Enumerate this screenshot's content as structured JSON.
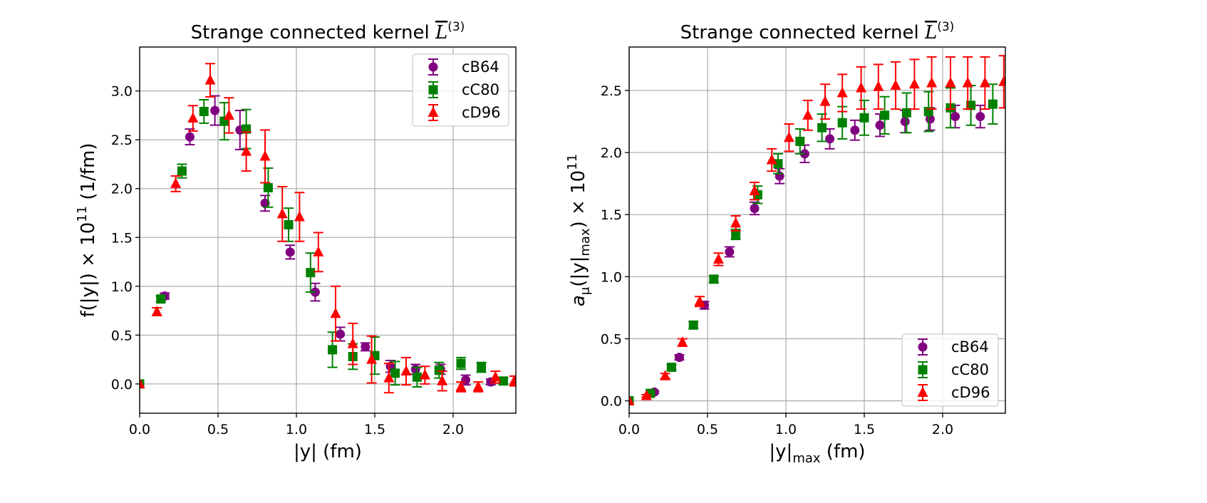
{
  "chart_data": [
    {
      "type": "scatter",
      "title": "Strange connected kernel",
      "title_symbol": "L",
      "title_superscript": "(3)",
      "xlabel": "|y| (fm)",
      "ylabel_main": "f(|y|) × 10",
      "ylabel_exp": "11",
      "ylabel_unit": " (1/fm)",
      "xlim": [
        0.0,
        2.4
      ],
      "ylim": [
        -0.3,
        3.45
      ],
      "xticks": [
        0.0,
        0.5,
        1.0,
        1.5,
        2.0
      ],
      "xtick_labels": [
        "0.0",
        "0.5",
        "1.0",
        "1.5",
        "2.0"
      ],
      "yticks": [
        0.0,
        0.5,
        1.0,
        1.5,
        2.0,
        2.5,
        3.0
      ],
      "ytick_labels": [
        "0.0",
        "0.5",
        "1.0",
        "1.5",
        "2.0",
        "2.5",
        "3.0"
      ],
      "grid": true,
      "legend_position": "upper right",
      "series": [
        {
          "name": "cB64",
          "color": "#800080",
          "marker": "circle",
          "x": [
            0.0,
            0.16,
            0.32,
            0.48,
            0.64,
            0.8,
            0.96,
            1.12,
            1.28,
            1.44,
            1.6,
            1.76,
            1.92,
            2.08,
            2.24
          ],
          "y": [
            0.0,
            0.9,
            2.53,
            2.8,
            2.6,
            1.85,
            1.35,
            0.94,
            0.51,
            0.38,
            0.18,
            0.15,
            0.15,
            0.04,
            0.02
          ],
          "err": [
            0.0,
            0.03,
            0.08,
            0.15,
            0.2,
            0.08,
            0.07,
            0.09,
            0.07,
            0.04,
            0.06,
            0.05,
            0.05,
            0.05,
            0.03
          ]
        },
        {
          "name": "cC80",
          "color": "#008000",
          "marker": "square",
          "x": [
            0.0,
            0.135,
            0.27,
            0.41,
            0.54,
            0.68,
            0.82,
            0.95,
            1.09,
            1.23,
            1.36,
            1.5,
            1.63,
            1.77,
            1.91,
            2.05,
            2.18,
            2.32
          ],
          "y": [
            0.0,
            0.87,
            2.18,
            2.79,
            2.69,
            2.61,
            2.01,
            1.63,
            1.14,
            0.35,
            0.28,
            0.29,
            0.11,
            0.07,
            0.14,
            0.21,
            0.17,
            0.03
          ],
          "err": [
            0.0,
            0.03,
            0.07,
            0.12,
            0.19,
            0.2,
            0.2,
            0.17,
            0.2,
            0.18,
            0.13,
            0.19,
            0.12,
            0.1,
            0.08,
            0.06,
            0.05,
            0.03
          ]
        },
        {
          "name": "cD96",
          "color": "#ff0000",
          "marker": "triangle",
          "x": [
            0.0,
            0.11,
            0.23,
            0.34,
            0.45,
            0.57,
            0.68,
            0.8,
            0.91,
            1.02,
            1.14,
            1.25,
            1.36,
            1.48,
            1.59,
            1.7,
            1.82,
            1.93,
            2.05,
            2.16,
            2.27,
            2.39
          ],
          "y": [
            0.0,
            0.74,
            2.05,
            2.72,
            3.11,
            2.75,
            2.38,
            2.33,
            1.74,
            1.71,
            1.35,
            0.72,
            0.41,
            0.25,
            0.06,
            0.13,
            0.09,
            0.03,
            -0.03,
            -0.03,
            0.07,
            0.03
          ],
          "err": [
            0.0,
            0.04,
            0.08,
            0.13,
            0.17,
            0.18,
            0.2,
            0.27,
            0.28,
            0.25,
            0.2,
            0.28,
            0.21,
            0.24,
            0.15,
            0.14,
            0.09,
            0.1,
            0.05,
            0.05,
            0.06,
            0.05
          ]
        }
      ]
    },
    {
      "type": "scatter",
      "title": "Strange connected kernel",
      "title_symbol": "L",
      "title_superscript": "(3)",
      "xlabel_main": "|y|",
      "xlabel_sub": "max",
      "xlabel_unit": " (fm)",
      "ylabel_main": "a",
      "ylabel_mu": "μ",
      "ylabel_mid": "(|y|",
      "ylabel_sub": "max",
      "ylabel_tail": ") × 10",
      "ylabel_exp": "11",
      "xlim": [
        0.0,
        2.4
      ],
      "ylim": [
        -0.1,
        2.85
      ],
      "xticks": [
        0.0,
        0.5,
        1.0,
        1.5,
        2.0
      ],
      "xtick_labels": [
        "0.0",
        "0.5",
        "1.0",
        "1.5",
        "2.0"
      ],
      "yticks": [
        0.0,
        0.5,
        1.0,
        1.5,
        2.0,
        2.5
      ],
      "ytick_labels": [
        "0.0",
        "0.5",
        "1.0",
        "1.5",
        "2.0",
        "2.5"
      ],
      "grid": true,
      "legend_position": "lower right",
      "series": [
        {
          "name": "cB64",
          "color": "#800080",
          "marker": "circle",
          "x": [
            0.0,
            0.16,
            0.32,
            0.48,
            0.64,
            0.8,
            0.96,
            1.12,
            1.28,
            1.44,
            1.6,
            1.76,
            1.92,
            2.08,
            2.24
          ],
          "y": [
            0.0,
            0.07,
            0.35,
            0.77,
            1.2,
            1.55,
            1.81,
            1.99,
            2.11,
            2.18,
            2.22,
            2.25,
            2.27,
            2.29,
            2.29
          ],
          "err": [
            0.0,
            0.01,
            0.02,
            0.03,
            0.04,
            0.05,
            0.06,
            0.07,
            0.08,
            0.08,
            0.09,
            0.09,
            0.09,
            0.09,
            0.09
          ]
        },
        {
          "name": "cC80",
          "color": "#008000",
          "marker": "square",
          "x": [
            0.0,
            0.135,
            0.27,
            0.41,
            0.54,
            0.68,
            0.82,
            0.95,
            1.09,
            1.23,
            1.36,
            1.5,
            1.63,
            1.77,
            1.91,
            2.05,
            2.18,
            2.32
          ],
          "y": [
            0.0,
            0.06,
            0.27,
            0.61,
            0.98,
            1.34,
            1.66,
            1.91,
            2.09,
            2.2,
            2.24,
            2.28,
            2.3,
            2.32,
            2.33,
            2.36,
            2.38,
            2.39
          ],
          "err": [
            0.0,
            0.01,
            0.02,
            0.03,
            0.03,
            0.04,
            0.07,
            0.08,
            0.1,
            0.11,
            0.13,
            0.14,
            0.15,
            0.16,
            0.16,
            0.16,
            0.16,
            0.16
          ]
        },
        {
          "name": "cD96",
          "color": "#ff0000",
          "marker": "triangle",
          "x": [
            0.0,
            0.11,
            0.23,
            0.34,
            0.45,
            0.57,
            0.68,
            0.8,
            0.91,
            1.02,
            1.14,
            1.25,
            1.36,
            1.48,
            1.59,
            1.7,
            1.82,
            1.93,
            2.05,
            2.16,
            2.27,
            2.39
          ],
          "y": [
            0.0,
            0.04,
            0.2,
            0.47,
            0.8,
            1.14,
            1.43,
            1.69,
            1.94,
            2.12,
            2.3,
            2.41,
            2.48,
            2.52,
            2.53,
            2.54,
            2.55,
            2.56,
            2.56,
            2.56,
            2.56,
            2.57
          ],
          "err": [
            0.0,
            0.01,
            0.02,
            0.03,
            0.04,
            0.05,
            0.06,
            0.07,
            0.09,
            0.11,
            0.12,
            0.14,
            0.15,
            0.17,
            0.18,
            0.19,
            0.2,
            0.21,
            0.21,
            0.21,
            0.21,
            0.21
          ]
        }
      ]
    }
  ]
}
